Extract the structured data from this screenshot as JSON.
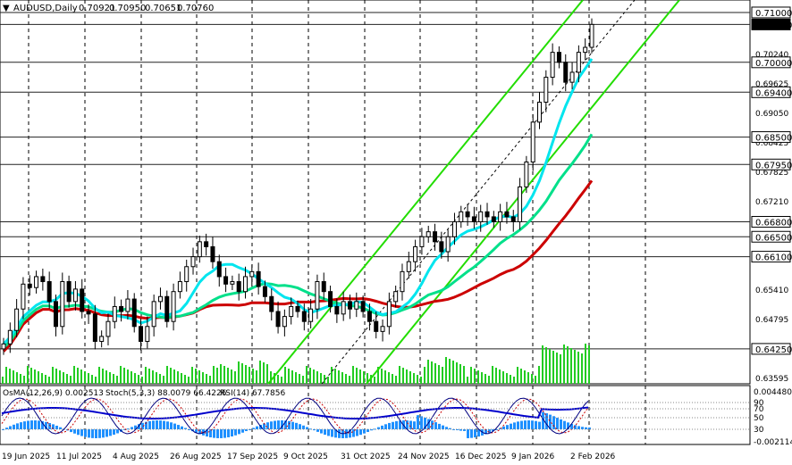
{
  "header": {
    "symbol": "AUDUSD,Daily",
    "open": "0.70921",
    "high": "0.70950",
    "low": "0.70651",
    "close": "0.70760"
  },
  "indicators_header": {
    "osma": "OsMA(12,26,9) 0.002513",
    "stoch": "Stoch(5,3,3) 88.0079 66.4226",
    "rsi": "RSI(14) 67.7856"
  },
  "price_axis": {
    "plain_ticks": [
      "0.70240",
      "0.69625",
      "0.69050",
      "0.68425",
      "0.67825",
      "0.67210",
      "0.66610",
      "0.65410",
      "0.64795",
      "0.64180",
      "0.63595"
    ],
    "boxed_levels": [
      "0.71000",
      "0.70760",
      "0.70000",
      "0.69400",
      "0.68500",
      "0.67950",
      "0.66800",
      "0.66500",
      "0.66100",
      "0.64250"
    ],
    "current_price": "0.70760"
  },
  "indicator_axis": {
    "top": "0.0044805",
    "bottom": "-0.002114",
    "stoch_levels": [
      "90",
      "70",
      "50",
      "30"
    ]
  },
  "date_axis": [
    "19 Jun 2025",
    "11 Jul 2025",
    "4 Aug 2025",
    "26 Aug 2025",
    "17 Sep 2025",
    "9 Oct 2025",
    "31 Oct 2025",
    "24 Nov 2025",
    "16 Dec 2025",
    "9 Jan 2026",
    "2 Feb 2026"
  ],
  "colors": {
    "bull_candle": "#ffffff",
    "bear_candle": "#000000",
    "ma_fast": "#00e5ee",
    "ma_mid": "#00e08a",
    "ma_slow": "#cc0000",
    "channel": "#22dd00",
    "volume": "#22cc22",
    "osma_hist": "#1e90ff",
    "stoch_main": "#000080",
    "stoch_signal": "#cc0000",
    "rsi": "#0000cc"
  },
  "chart_data": {
    "type": "candlestick",
    "symbol": "AUDUSD",
    "timeframe": "Daily",
    "ylim": [
      0.6355,
      0.7125
    ],
    "horizontal_levels": [
      0.71,
      0.7076,
      0.7,
      0.694,
      0.685,
      0.6795,
      0.668,
      0.665,
      0.661,
      0.6425
    ],
    "closes_approx": [
      0.6435,
      0.6462,
      0.6505,
      0.6555,
      0.6548,
      0.657,
      0.656,
      0.652,
      0.647,
      0.656,
      0.652,
      0.6545,
      0.65,
      0.6495,
      0.644,
      0.645,
      0.648,
      0.651,
      0.65,
      0.6525,
      0.647,
      0.644,
      0.647,
      0.652,
      0.653,
      0.648,
      0.654,
      0.656,
      0.659,
      0.661,
      0.664,
      0.663,
      0.66,
      0.657,
      0.6555,
      0.656,
      0.654,
      0.657,
      0.658,
      0.655,
      0.653,
      0.65,
      0.647,
      0.649,
      0.651,
      0.65,
      0.648,
      0.6505,
      0.656,
      0.654,
      0.651,
      0.6495,
      0.652,
      0.6505,
      0.652,
      0.65,
      0.648,
      0.646,
      0.647,
      0.652,
      0.654,
      0.658,
      0.66,
      0.663,
      0.665,
      0.666,
      0.664,
      0.662,
      0.665,
      0.668,
      0.67,
      0.669,
      0.668,
      0.67,
      0.669,
      0.668,
      0.67,
      0.669,
      0.668,
      0.675,
      0.68,
      0.688,
      0.692,
      0.697,
      0.702,
      0.7,
      0.696,
      0.698,
      0.702,
      0.703,
      0.7076
    ]
  }
}
